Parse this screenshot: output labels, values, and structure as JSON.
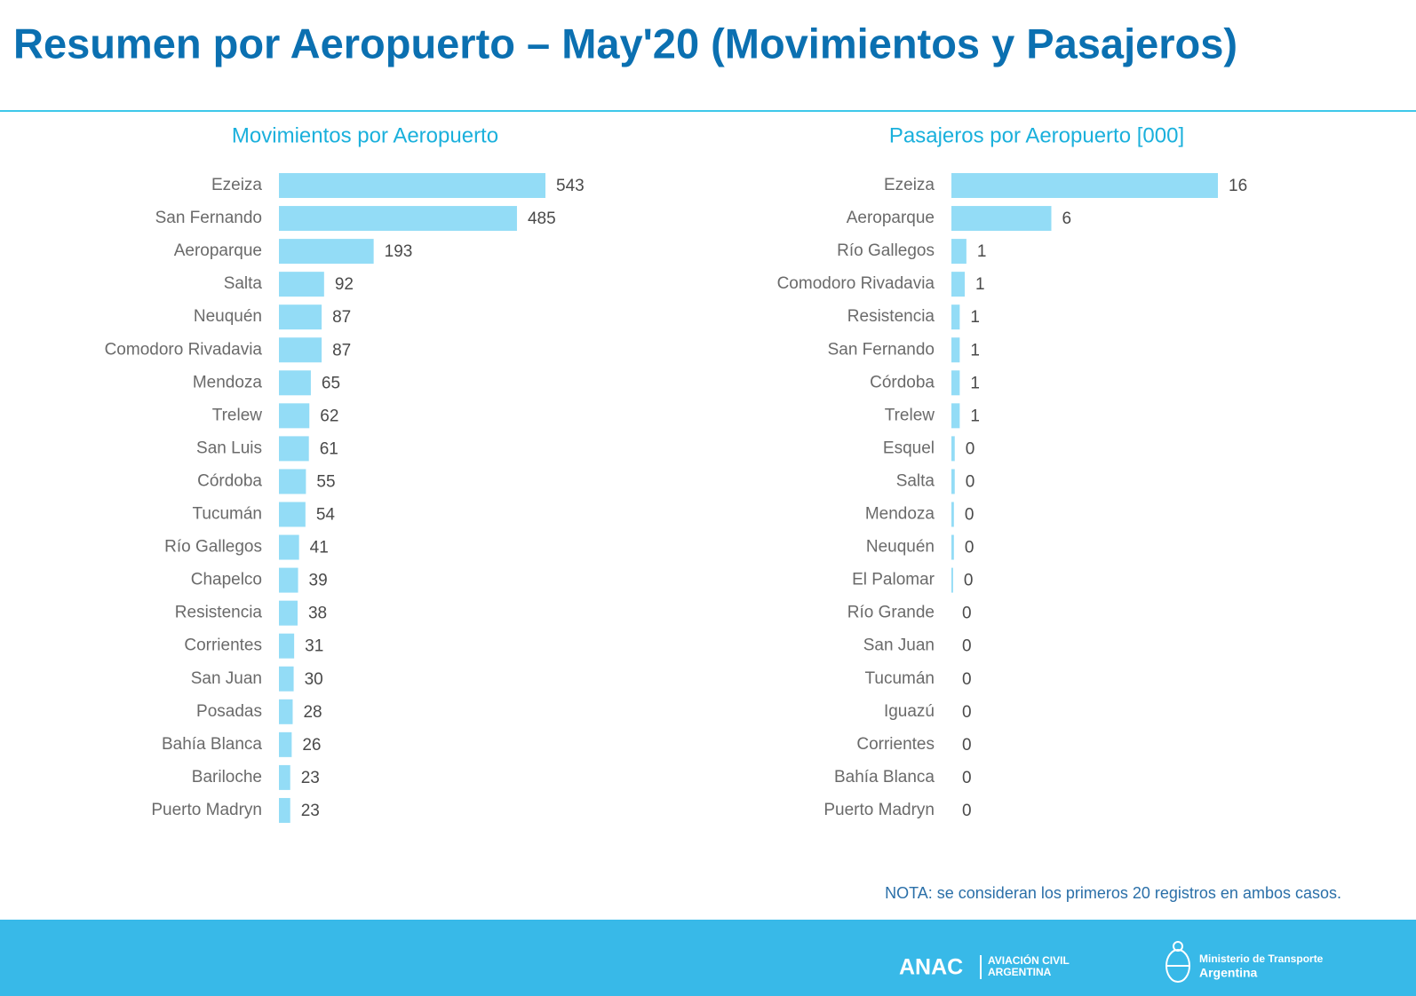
{
  "header": {
    "title": "Resumen por Aeropuerto – May'20 (Movimientos y Pasajeros)"
  },
  "chart_data": [
    {
      "type": "barh",
      "title": "Movimientos por Aeropuerto",
      "color": "#93dcf6",
      "categories": [
        "Ezeiza",
        "San Fernando",
        "Aeroparque",
        "Salta",
        "Neuquén",
        "Comodoro Rivadavia",
        "Mendoza",
        "Trelew",
        "San Luis",
        "Córdoba",
        "Tucumán",
        "Río Gallegos",
        "Chapelco",
        "Resistencia",
        "Corrientes",
        "San Juan",
        "Posadas",
        "Bahía Blanca",
        "Bariloche",
        "Puerto Madryn"
      ],
      "values": [
        543,
        485,
        193,
        92,
        87,
        87,
        65,
        62,
        61,
        55,
        54,
        41,
        39,
        38,
        31,
        30,
        28,
        26,
        23,
        23
      ]
    },
    {
      "type": "barh",
      "title": "Pasajeros por Aeropuerto [000]",
      "color": "#93dcf6",
      "categories": [
        "Ezeiza",
        "Aeroparque",
        "Río Gallegos",
        "Comodoro Rivadavia",
        "Resistencia",
        "San Fernando",
        "Córdoba",
        "Trelew",
        "Esquel",
        "Salta",
        "Mendoza",
        "Neuquén",
        "El Palomar",
        "Río Grande",
        "San Juan",
        "Tucumán",
        "Iguazú",
        "Corrientes",
        "Bahía Blanca",
        "Puerto Madryn"
      ],
      "values": [
        16,
        6,
        0.9,
        0.8,
        0.5,
        0.5,
        0.5,
        0.5,
        0.2,
        0.2,
        0.15,
        0.15,
        0.1,
        0,
        0,
        0,
        0,
        0,
        0,
        0
      ],
      "value_labels": [
        "16",
        "6",
        "1",
        "1",
        "1",
        "1",
        "1",
        "1",
        "0",
        "0",
        "0",
        "0",
        "0",
        "0",
        "0",
        "0",
        "0",
        "0",
        "0",
        "0"
      ]
    }
  ],
  "note": "NOTA:  se consideran los primeros 20 registros en ambos casos.",
  "footer": {
    "anac": "ANAC",
    "anac_line1": "AVIACIÓN CIVIL",
    "anac_line2": "ARGENTINA",
    "ministry_line1": "Ministerio de Transporte",
    "ministry_line2": "Argentina"
  }
}
